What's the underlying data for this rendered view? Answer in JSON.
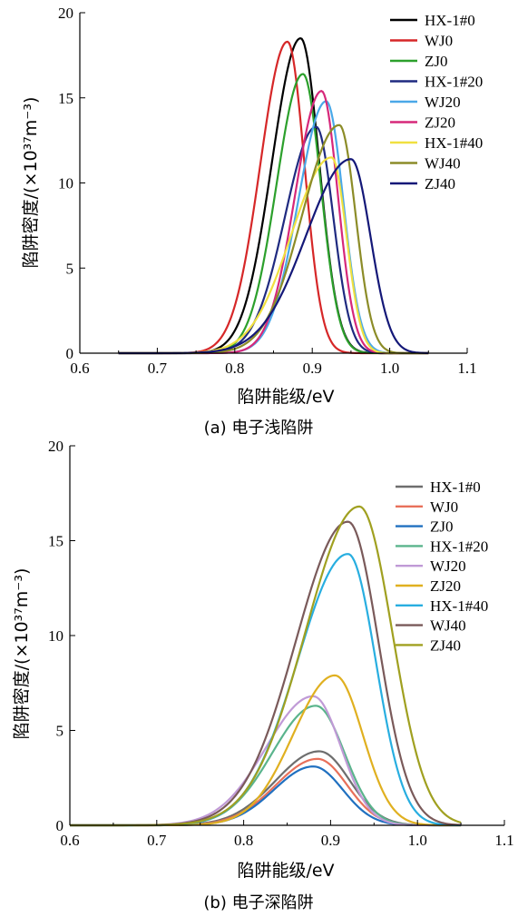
{
  "chart_data": [
    {
      "type": "line",
      "caption": "(a) 电子浅陷阱",
      "xlabel": "陷阱能级/eV",
      "ylabel": "陷阱密度/(×10³⁷m⁻³)",
      "xlim": [
        0.6,
        1.1
      ],
      "ylim": [
        0,
        20
      ],
      "xticks": [
        0.6,
        0.7,
        0.8,
        0.9,
        1.0,
        1.1
      ],
      "xtick_labels": [
        "0.6",
        "0.7",
        "0.8",
        "0.9",
        "1.0",
        "1.1"
      ],
      "yticks": [
        0,
        5,
        10,
        15,
        20
      ],
      "ytick_labels": [
        "0",
        "5",
        "10",
        "15",
        "20"
      ],
      "grid": false,
      "legend": "top-right",
      "x_range": [
        0.65,
        1.05
      ],
      "series": [
        {
          "name": "HX-1#0",
          "color": "#000000",
          "peak_x": 0.885,
          "peak_y": 18.5,
          "sigma_left": 0.037,
          "sigma_right": 0.024
        },
        {
          "name": "WJ0",
          "color": "#d62728",
          "peak_x": 0.868,
          "peak_y": 18.3,
          "sigma_left": 0.035,
          "sigma_right": 0.022
        },
        {
          "name": "ZJ0",
          "color": "#2ca02c",
          "peak_x": 0.888,
          "peak_y": 16.4,
          "sigma_left": 0.034,
          "sigma_right": 0.023
        },
        {
          "name": "HX-1#20",
          "color": "#1f2a80",
          "peak_x": 0.905,
          "peak_y": 13.3,
          "sigma_left": 0.04,
          "sigma_right": 0.022
        },
        {
          "name": "WJ20",
          "color": "#4aa8e8",
          "peak_x": 0.918,
          "peak_y": 14.8,
          "sigma_left": 0.036,
          "sigma_right": 0.022
        },
        {
          "name": "ZJ20",
          "color": "#d6287a",
          "peak_x": 0.912,
          "peak_y": 15.4,
          "sigma_left": 0.034,
          "sigma_right": 0.021
        },
        {
          "name": "HX-1#40",
          "color": "#f0e040",
          "peak_x": 0.925,
          "peak_y": 11.5,
          "sigma_left": 0.052,
          "sigma_right": 0.019
        },
        {
          "name": "WJ40",
          "color": "#8c8c28",
          "peak_x": 0.935,
          "peak_y": 13.4,
          "sigma_left": 0.048,
          "sigma_right": 0.021
        },
        {
          "name": "ZJ40",
          "color": "#141878",
          "peak_x": 0.95,
          "peak_y": 11.4,
          "sigma_left": 0.058,
          "sigma_right": 0.025
        }
      ]
    },
    {
      "type": "line",
      "caption": "(b) 电子深陷阱",
      "xlabel": "陷阱能级/eV",
      "ylabel": "陷阱密度/(×10³⁷m⁻³)",
      "xlim": [
        0.6,
        1.1
      ],
      "ylim": [
        0,
        20
      ],
      "xticks": [
        0.6,
        0.7,
        0.8,
        0.9,
        1.0,
        1.1
      ],
      "xtick_labels": [
        "0.6",
        "0.7",
        "0.8",
        "0.9",
        "1.0",
        "1.1"
      ],
      "yticks": [
        0,
        5,
        10,
        15,
        20
      ],
      "ytick_labels": [
        "0",
        "5",
        "10",
        "15",
        "20"
      ],
      "grid": false,
      "legend": "top-right",
      "x_range": [
        0.6,
        1.05
      ],
      "series": [
        {
          "name": "HX-1#0",
          "color": "#6e6e6e",
          "peak_x": 0.887,
          "peak_y": 3.9,
          "sigma_left": 0.05,
          "sigma_right": 0.035
        },
        {
          "name": "WJ0",
          "color": "#e8705a",
          "peak_x": 0.885,
          "peak_y": 3.5,
          "sigma_left": 0.048,
          "sigma_right": 0.034
        },
        {
          "name": "ZJ0",
          "color": "#2070c0",
          "peak_x": 0.88,
          "peak_y": 3.1,
          "sigma_left": 0.045,
          "sigma_right": 0.034
        },
        {
          "name": "HX-1#20",
          "color": "#5ab48c",
          "peak_x": 0.883,
          "peak_y": 6.3,
          "sigma_left": 0.05,
          "sigma_right": 0.033
        },
        {
          "name": "WJ20",
          "color": "#c09ad6",
          "peak_x": 0.88,
          "peak_y": 6.8,
          "sigma_left": 0.054,
          "sigma_right": 0.032
        },
        {
          "name": "ZJ20",
          "color": "#e0b020",
          "peak_x": 0.905,
          "peak_y": 7.9,
          "sigma_left": 0.048,
          "sigma_right": 0.032
        },
        {
          "name": "HX-1#40",
          "color": "#28aee0",
          "peak_x": 0.92,
          "peak_y": 14.3,
          "sigma_left": 0.058,
          "sigma_right": 0.032
        },
        {
          "name": "WJ40",
          "color": "#7a5a5a",
          "peak_x": 0.92,
          "peak_y": 16.0,
          "sigma_left": 0.06,
          "sigma_right": 0.035
        },
        {
          "name": "ZJ40",
          "color": "#a0a020",
          "peak_x": 0.933,
          "peak_y": 16.8,
          "sigma_left": 0.062,
          "sigma_right": 0.038
        }
      ]
    }
  ]
}
